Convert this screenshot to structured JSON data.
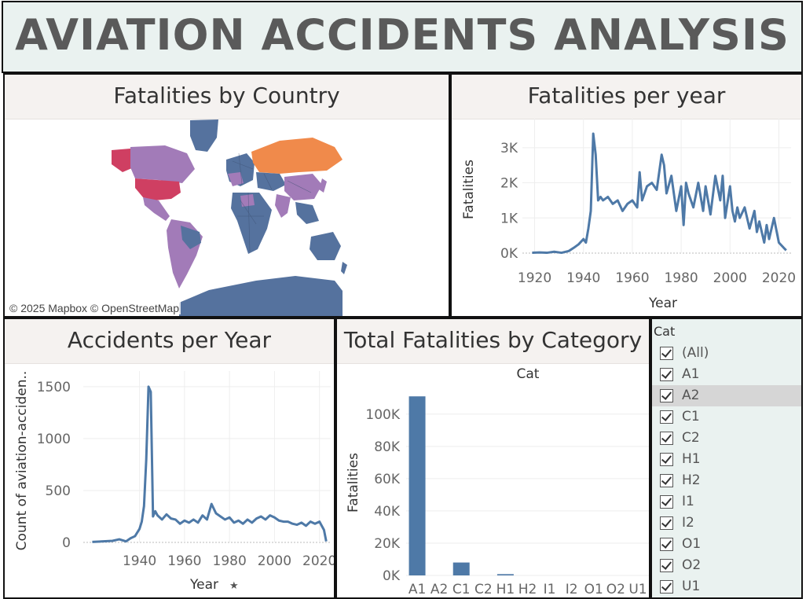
{
  "dashboard": {
    "title": "AVIATION ACCIDENTS ANALYSIS"
  },
  "map_panel": {
    "title": "Fatalities by Country",
    "credit": "© 2025 Mapbox © OpenStreetMap",
    "colors": {
      "low": "#55729e",
      "mid": "#a27bb8",
      "high": "#cf3f62",
      "russia": "#f08a4b"
    }
  },
  "chart_data": [
    {
      "type": "line",
      "title": "Fatalities per year",
      "xlabel": "Year",
      "ylabel": "Fatalities",
      "x_ticks": [
        1920,
        1940,
        1960,
        1980,
        2000,
        2020
      ],
      "y_ticks": [
        "0K",
        "1K",
        "2K",
        "3K"
      ],
      "ylim": [
        0,
        3600
      ],
      "grid": true,
      "color": "#4e79a7",
      "x": [
        1919,
        1922,
        1925,
        1928,
        1931,
        1934,
        1936,
        1938,
        1940,
        1941,
        1942,
        1943,
        1944,
        1945,
        1946,
        1947,
        1948,
        1950,
        1952,
        1954,
        1956,
        1958,
        1960,
        1962,
        1963,
        1964,
        1966,
        1968,
        1970,
        1972,
        1973,
        1974,
        1976,
        1978,
        1980,
        1981,
        1982,
        1983,
        1985,
        1987,
        1989,
        1990,
        1992,
        1994,
        1996,
        1997,
        1998,
        2000,
        2001,
        2002,
        2003,
        2004,
        2006,
        2008,
        2010,
        2011,
        2012,
        2014,
        2015,
        2016,
        2018,
        2020,
        2022,
        2023
      ],
      "y": [
        10,
        20,
        10,
        40,
        10,
        60,
        150,
        250,
        400,
        300,
        700,
        1200,
        3400,
        2800,
        1500,
        1600,
        1500,
        1600,
        1400,
        1500,
        1200,
        1400,
        1500,
        1300,
        2300,
        1500,
        1900,
        2000,
        1800,
        2800,
        2500,
        1700,
        2200,
        1200,
        1900,
        800,
        2000,
        1700,
        1300,
        2000,
        1200,
        1900,
        1100,
        2200,
        1500,
        2200,
        1000,
        1900,
        1200,
        900,
        1300,
        1000,
        1300,
        700,
        1200,
        600,
        900,
        300,
        800,
        400,
        1000,
        300,
        150,
        80
      ]
    },
    {
      "type": "line",
      "title": "Accidents per Year",
      "xlabel": "Year",
      "ylabel": "Count of aviation-acciden..",
      "x_ticks": [
        1940,
        1960,
        1980,
        2000,
        2020
      ],
      "y_ticks": [
        0,
        500,
        1000,
        1500
      ],
      "ylim": [
        0,
        1650
      ],
      "grid": true,
      "color": "#4e79a7",
      "x": [
        1919,
        1924,
        1928,
        1931,
        1934,
        1936,
        1938,
        1940,
        1941,
        1942,
        1943,
        1944,
        1945,
        1946,
        1947,
        1948,
        1950,
        1952,
        1954,
        1956,
        1958,
        1960,
        1962,
        1964,
        1966,
        1968,
        1970,
        1972,
        1974,
        1976,
        1978,
        1980,
        1982,
        1984,
        1986,
        1988,
        1990,
        1992,
        1994,
        1996,
        1998,
        2000,
        2002,
        2004,
        2006,
        2008,
        2010,
        2012,
        2014,
        2016,
        2018,
        2020,
        2021,
        2022,
        2023
      ],
      "y": [
        5,
        10,
        15,
        30,
        10,
        40,
        60,
        130,
        200,
        350,
        800,
        1500,
        1450,
        250,
        300,
        260,
        220,
        270,
        230,
        220,
        180,
        210,
        190,
        220,
        190,
        260,
        220,
        370,
        280,
        250,
        220,
        240,
        190,
        210,
        180,
        220,
        190,
        230,
        250,
        220,
        260,
        240,
        210,
        200,
        200,
        180,
        170,
        190,
        160,
        200,
        180,
        200,
        160,
        120,
        10
      ]
    },
    {
      "type": "bar",
      "title": "Total Fatalities by Category",
      "header": "Cat",
      "xlabel": "",
      "ylabel": "Fatalities",
      "categories": [
        "A1",
        "A2",
        "C1",
        "C2",
        "H1",
        "H2",
        "I1",
        "I2",
        "O1",
        "O2",
        "U1"
      ],
      "values": [
        111000,
        0,
        8000,
        0,
        800,
        0,
        0,
        0,
        0,
        0,
        0
      ],
      "y_ticks": [
        "0K",
        "20K",
        "40K",
        "60K",
        "80K",
        "100K"
      ],
      "ylim": [
        0,
        115000
      ],
      "grid": true,
      "color": "#4e79a7"
    }
  ],
  "filter": {
    "title": "Cat",
    "items": [
      {
        "label": "(All)",
        "checked": true,
        "selected": false
      },
      {
        "label": "A1",
        "checked": true,
        "selected": false
      },
      {
        "label": "A2",
        "checked": true,
        "selected": true
      },
      {
        "label": "C1",
        "checked": true,
        "selected": false
      },
      {
        "label": "C2",
        "checked": true,
        "selected": false
      },
      {
        "label": "H1",
        "checked": true,
        "selected": false
      },
      {
        "label": "H2",
        "checked": true,
        "selected": false
      },
      {
        "label": "I1",
        "checked": true,
        "selected": false
      },
      {
        "label": "I2",
        "checked": true,
        "selected": false
      },
      {
        "label": "O1",
        "checked": true,
        "selected": false
      },
      {
        "label": "O2",
        "checked": true,
        "selected": false
      },
      {
        "label": "U1",
        "checked": true,
        "selected": false
      }
    ]
  }
}
